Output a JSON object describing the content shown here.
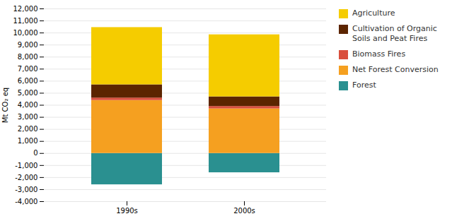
{
  "chart_data": {
    "type": "bar",
    "stacked": true,
    "categories": [
      "1990s",
      "2000s"
    ],
    "series": [
      {
        "name": "Forest",
        "color": "#2a9090",
        "values": [
          -2600,
          -1600
        ]
      },
      {
        "name": "Net Forest Conversion",
        "color": "#f5a020",
        "values": [
          4400,
          3700
        ]
      },
      {
        "name": "Biomass Fires",
        "color": "#d94f3d",
        "values": [
          200,
          200
        ]
      },
      {
        "name": "Cultivation of Organic\nSoils and Peat Fires",
        "color": "#5c2500",
        "values": [
          1100,
          800
        ]
      },
      {
        "name": "Agriculture",
        "color": "#f5cc00",
        "values": [
          4750,
          5150
        ]
      }
    ],
    "ylabel": "Mt CO₂ eq",
    "ylim": [
      -4000,
      12000
    ],
    "yticks": [
      {
        "value": -4000,
        "label": "-4,000"
      },
      {
        "value": -3000,
        "label": "-3,000"
      },
      {
        "value": -2000,
        "label": "-2,000"
      },
      {
        "value": -1000,
        "label": "-1,000"
      },
      0,
      {
        "value": 1000,
        "label": "1,000"
      },
      {
        "value": 2000,
        "label": "2,000"
      },
      {
        "value": 3000,
        "label": "3,000"
      },
      {
        "value": 4000,
        "label": "4,000"
      },
      {
        "value": 5000,
        "label": "5,000"
      },
      {
        "value": 6000,
        "label": "6,000"
      },
      {
        "value": 7000,
        "label": "7,000"
      },
      {
        "value": 8000,
        "label": "8,000"
      },
      {
        "value": 9000,
        "label": "9,000"
      },
      {
        "value": 10000,
        "label": "10,000"
      },
      {
        "value": 11000,
        "label": "11,000"
      },
      {
        "value": 12000,
        "label": "12,000"
      }
    ],
    "grid": true,
    "legend": "right"
  }
}
